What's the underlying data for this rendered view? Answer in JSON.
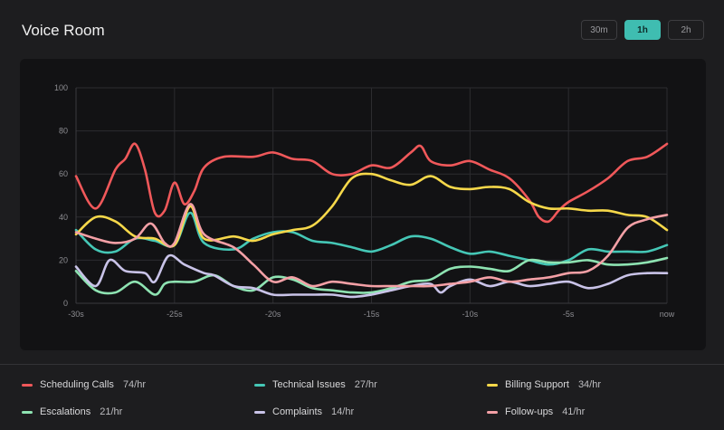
{
  "header": {
    "title": "Voice Room"
  },
  "range": {
    "options": [
      "30m",
      "1h",
      "2h"
    ],
    "active": "1h"
  },
  "chart_data": {
    "type": "line",
    "x_ticks": [
      "-30s",
      "-25s",
      "-20s",
      "-15s",
      "-10s",
      "-5s",
      "now"
    ],
    "y_ticks": [
      "0",
      "20",
      "40",
      "60",
      "80",
      "100"
    ],
    "xlim": [
      -30,
      0
    ],
    "ylim": [
      0,
      100
    ],
    "grid": true,
    "series": [
      {
        "name": "Scheduling Calls",
        "color": "#f0585a",
        "values": [
          [
            -30,
            59
          ],
          [
            -29,
            44
          ],
          [
            -28,
            62
          ],
          [
            -27.5,
            67
          ],
          [
            -27,
            74
          ],
          [
            -26.5,
            62
          ],
          [
            -26,
            42
          ],
          [
            -25.5,
            43
          ],
          [
            -25,
            56
          ],
          [
            -24.5,
            46
          ],
          [
            -24,
            52
          ],
          [
            -23.5,
            63
          ],
          [
            -22.5,
            68
          ],
          [
            -21,
            68
          ],
          [
            -20,
            70
          ],
          [
            -19,
            67
          ],
          [
            -18,
            66
          ],
          [
            -17,
            60
          ],
          [
            -16,
            60
          ],
          [
            -15,
            64
          ],
          [
            -14,
            63
          ],
          [
            -13,
            70
          ],
          [
            -12.5,
            73
          ],
          [
            -12,
            66
          ],
          [
            -11,
            64
          ],
          [
            -10,
            66
          ],
          [
            -9,
            62
          ],
          [
            -8,
            58
          ],
          [
            -7,
            48
          ],
          [
            -6.5,
            40
          ],
          [
            -6,
            38
          ],
          [
            -5.5,
            43
          ],
          [
            -5,
            47
          ],
          [
            -4,
            52
          ],
          [
            -3,
            58
          ],
          [
            -2,
            66
          ],
          [
            -1,
            68
          ],
          [
            0,
            74
          ]
        ]
      },
      {
        "name": "Technical Issues",
        "color": "#45c7b6",
        "values": [
          [
            -30,
            34
          ],
          [
            -29,
            25
          ],
          [
            -28,
            24
          ],
          [
            -27,
            30
          ],
          [
            -26,
            29
          ],
          [
            -25,
            27
          ],
          [
            -24.2,
            42
          ],
          [
            -23.5,
            28
          ],
          [
            -22,
            25
          ],
          [
            -21,
            30
          ],
          [
            -20,
            33
          ],
          [
            -19,
            33
          ],
          [
            -18,
            29
          ],
          [
            -17,
            28
          ],
          [
            -16,
            26
          ],
          [
            -15,
            24
          ],
          [
            -14,
            27
          ],
          [
            -13,
            31
          ],
          [
            -12,
            30
          ],
          [
            -11,
            26
          ],
          [
            -10,
            23
          ],
          [
            -9,
            24
          ],
          [
            -8,
            22
          ],
          [
            -7,
            20
          ],
          [
            -6,
            18
          ],
          [
            -5,
            20
          ],
          [
            -4,
            25
          ],
          [
            -3,
            24
          ],
          [
            -2,
            24
          ],
          [
            -1,
            24
          ],
          [
            0,
            27
          ]
        ]
      },
      {
        "name": "Billing Support",
        "color": "#f6d84a",
        "values": [
          [
            -30,
            32
          ],
          [
            -29,
            40
          ],
          [
            -28,
            38
          ],
          [
            -27,
            31
          ],
          [
            -26,
            30
          ],
          [
            -25,
            27
          ],
          [
            -24.2,
            45
          ],
          [
            -23.5,
            30
          ],
          [
            -22,
            31
          ],
          [
            -21,
            29
          ],
          [
            -20,
            32
          ],
          [
            -19,
            34
          ],
          [
            -18,
            36
          ],
          [
            -17,
            45
          ],
          [
            -16,
            58
          ],
          [
            -15,
            60
          ],
          [
            -14,
            57
          ],
          [
            -13,
            55
          ],
          [
            -12,
            59
          ],
          [
            -11,
            54
          ],
          [
            -10,
            53
          ],
          [
            -9,
            54
          ],
          [
            -8,
            53
          ],
          [
            -7,
            47
          ],
          [
            -6,
            44
          ],
          [
            -5,
            44
          ],
          [
            -4,
            43
          ],
          [
            -3,
            43
          ],
          [
            -2,
            41
          ],
          [
            -1,
            40
          ],
          [
            0,
            34
          ]
        ]
      },
      {
        "name": "Escalations",
        "color": "#8ee3b2",
        "values": [
          [
            -30,
            15
          ],
          [
            -29,
            6
          ],
          [
            -28,
            5
          ],
          [
            -27,
            10
          ],
          [
            -26,
            4
          ],
          [
            -25.5,
            9
          ],
          [
            -25,
            10
          ],
          [
            -24,
            10
          ],
          [
            -23,
            13
          ],
          [
            -22,
            8
          ],
          [
            -21,
            6
          ],
          [
            -20,
            12
          ],
          [
            -19,
            11
          ],
          [
            -18,
            7
          ],
          [
            -17,
            6
          ],
          [
            -16,
            5
          ],
          [
            -15,
            5
          ],
          [
            -14,
            7
          ],
          [
            -13,
            10
          ],
          [
            -12,
            11
          ],
          [
            -11,
            16
          ],
          [
            -10,
            17
          ],
          [
            -9,
            16
          ],
          [
            -8,
            15
          ],
          [
            -7,
            20
          ],
          [
            -6,
            19
          ],
          [
            -5,
            19
          ],
          [
            -4,
            20
          ],
          [
            -3,
            18
          ],
          [
            -2,
            18
          ],
          [
            -1,
            19
          ],
          [
            0,
            21
          ]
        ]
      },
      {
        "name": "Complaints",
        "color": "#c9c3e8",
        "values": [
          [
            -30,
            17
          ],
          [
            -29,
            8
          ],
          [
            -28.3,
            20
          ],
          [
            -27.5,
            15
          ],
          [
            -26.5,
            14
          ],
          [
            -26,
            10
          ],
          [
            -25.3,
            22
          ],
          [
            -24.5,
            18
          ],
          [
            -23.5,
            14
          ],
          [
            -23,
            13
          ],
          [
            -22,
            8
          ],
          [
            -21,
            7
          ],
          [
            -20,
            4
          ],
          [
            -19,
            4
          ],
          [
            -18,
            4
          ],
          [
            -17,
            4
          ],
          [
            -16,
            3
          ],
          [
            -15,
            4
          ],
          [
            -14,
            6
          ],
          [
            -13,
            8
          ],
          [
            -12,
            9
          ],
          [
            -11.5,
            5
          ],
          [
            -11,
            8
          ],
          [
            -10,
            11
          ],
          [
            -9,
            8
          ],
          [
            -8,
            10
          ],
          [
            -7,
            8
          ],
          [
            -6,
            9
          ],
          [
            -5,
            10
          ],
          [
            -4,
            7
          ],
          [
            -3,
            9
          ],
          [
            -2,
            13
          ],
          [
            -1,
            14
          ],
          [
            0,
            14
          ]
        ]
      },
      {
        "name": "Follow-ups",
        "color": "#f4a0a6",
        "values": [
          [
            -30,
            33
          ],
          [
            -29,
            30
          ],
          [
            -28,
            28
          ],
          [
            -27,
            30
          ],
          [
            -26.2,
            37
          ],
          [
            -25.5,
            28
          ],
          [
            -25,
            28
          ],
          [
            -24.2,
            46
          ],
          [
            -23.5,
            32
          ],
          [
            -22,
            26
          ],
          [
            -21,
            18
          ],
          [
            -20,
            10
          ],
          [
            -19,
            12
          ],
          [
            -18,
            8
          ],
          [
            -17,
            10
          ],
          [
            -16,
            9
          ],
          [
            -15,
            8
          ],
          [
            -14,
            8
          ],
          [
            -13,
            8
          ],
          [
            -12,
            8
          ],
          [
            -11,
            9
          ],
          [
            -10,
            10
          ],
          [
            -9,
            12
          ],
          [
            -8,
            10
          ],
          [
            -7,
            11
          ],
          [
            -6,
            12
          ],
          [
            -5,
            14
          ],
          [
            -4,
            15
          ],
          [
            -3,
            22
          ],
          [
            -2,
            35
          ],
          [
            -1,
            39
          ],
          [
            0,
            41
          ]
        ]
      }
    ]
  },
  "legend": [
    {
      "name": "Scheduling Calls",
      "value": "74/hr",
      "color": "#f0585a"
    },
    {
      "name": "Technical Issues",
      "value": "27/hr",
      "color": "#45c7b6"
    },
    {
      "name": "Billing Support",
      "value": "34/hr",
      "color": "#f6d84a"
    },
    {
      "name": "Escalations",
      "value": "21/hr",
      "color": "#8ee3b2"
    },
    {
      "name": "Complaints",
      "value": "14/hr",
      "color": "#c9c3e8"
    },
    {
      "name": "Follow-ups",
      "value": "41/hr",
      "color": "#f4a0a6"
    }
  ]
}
